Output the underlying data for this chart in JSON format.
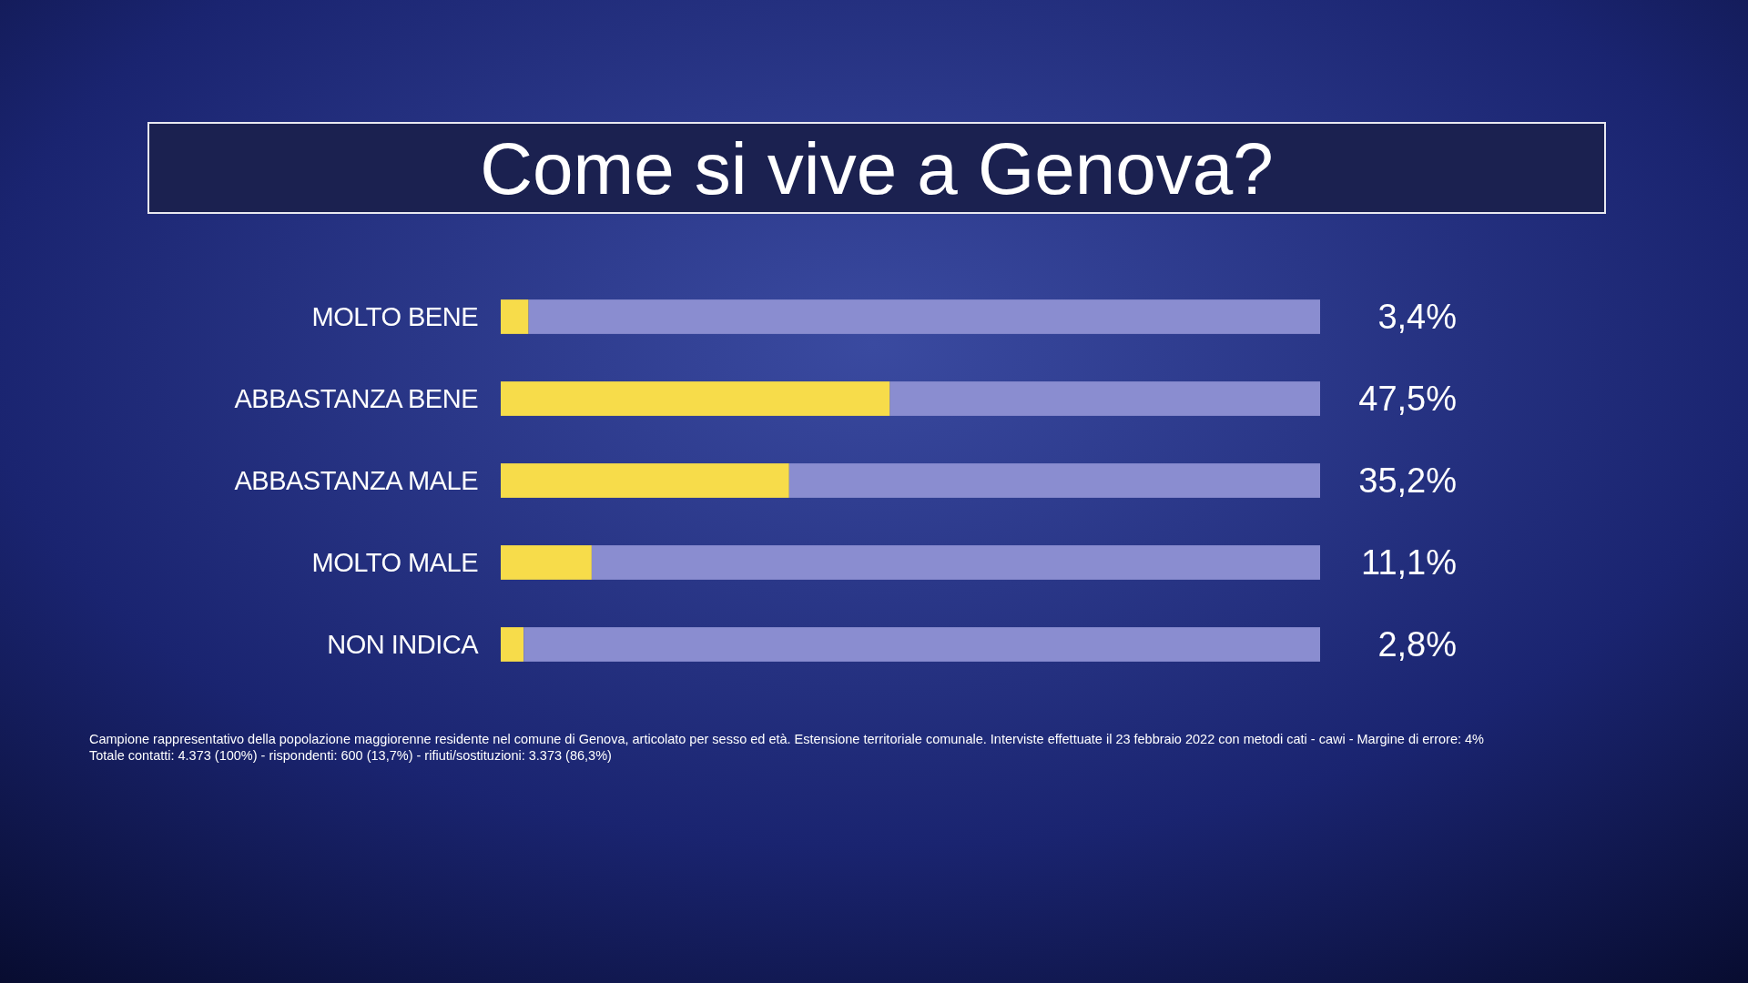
{
  "chart_data": {
    "type": "bar",
    "orientation": "horizontal",
    "stacked": true,
    "title": "Come si vive a Genova?",
    "categories": [
      "MOLTO BENE",
      "ABBASTANZA BENE",
      "ABBASTANZA MALE",
      "MOLTO MALE",
      "NON INDICA"
    ],
    "series": [
      {
        "color": "#f7dc4a",
        "values": [
          3.4,
          47.5,
          35.2,
          11.1,
          2.8
        ],
        "value_labels": [
          "3,4%",
          "47,5%",
          "35,2%",
          "11,1%",
          "2,8%"
        ]
      },
      {
        "color": "#8a8dd0",
        "values": [
          96.6,
          52.5,
          64.8,
          88.9,
          97.2
        ]
      }
    ],
    "xlim": [
      0,
      100
    ],
    "tick_labels": "y",
    "annotations": [
      "Campione rappresentativo della popolazione maggiorenne residente nel comune di Genova, articolato per sesso ed età. Estensione territoriale comunale. Interviste effettuate il 23 febbraio 2022 con metodi cati - cawi - Margine di errore: 4%",
      "Totale contatti: 4.373 (100%) - rispondenti: 600 (13,7%) - rifiuti/sostituzioni: 3.373 (86,3%)"
    ]
  }
}
